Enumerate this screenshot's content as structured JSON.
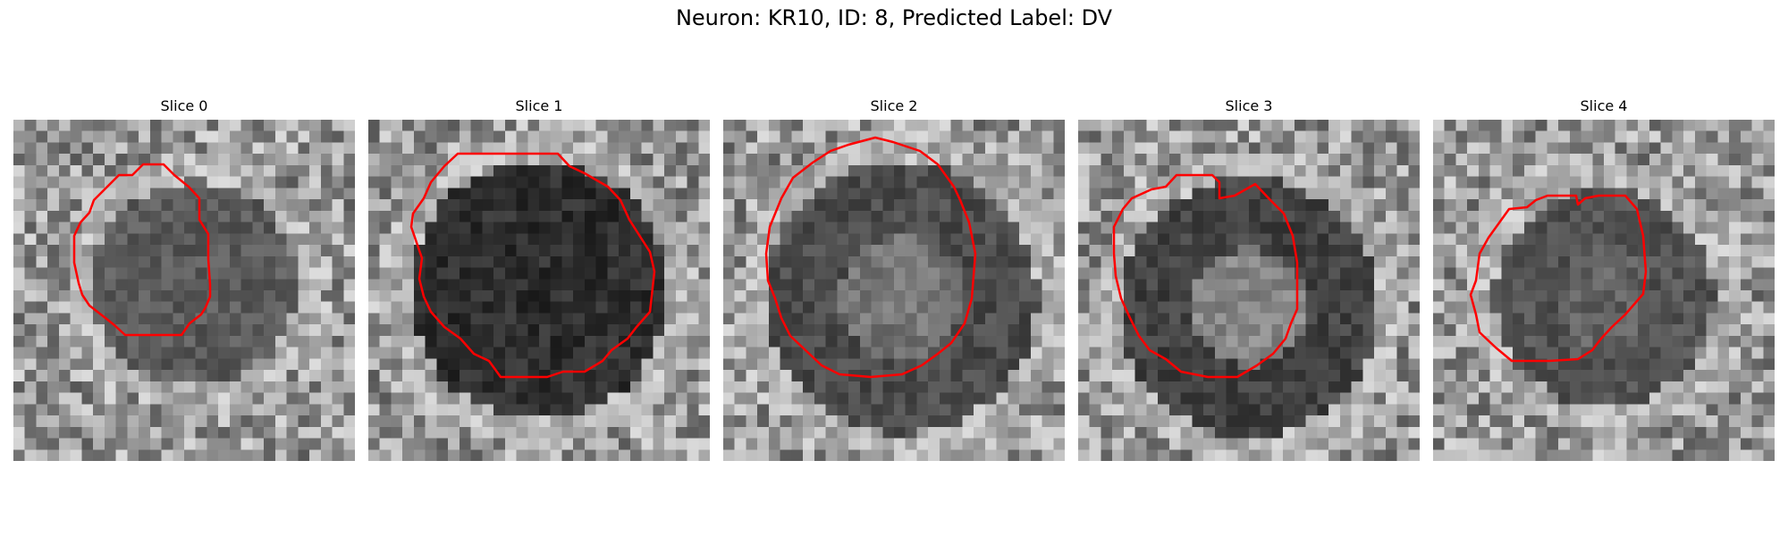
{
  "figure": {
    "title": "Neuron: KR10, ID: 8, Predicted Label: DV",
    "contour_color": "#ff0000"
  },
  "slices": [
    {
      "title": "Slice 0"
    },
    {
      "title": "Slice 1"
    },
    {
      "title": "Slice 2"
    },
    {
      "title": "Slice 3"
    },
    {
      "title": "Slice 4"
    }
  ]
}
